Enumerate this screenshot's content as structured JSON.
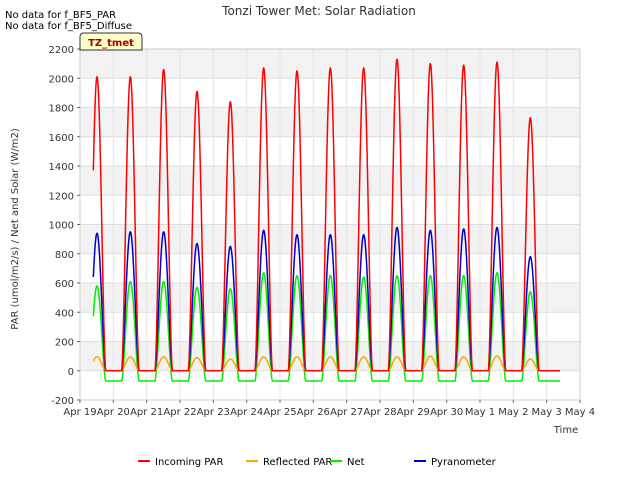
{
  "chart_data": {
    "type": "line",
    "title": "Tonzi Tower Met: Solar Radiation",
    "notes": [
      "No data for f_BF5_PAR",
      "No data for f_BF5_Diffuse"
    ],
    "site_badge": "TZ_tmet",
    "xlabel": "Time",
    "ylabel": "PAR (umol/m2/s) / Net and Solar (W/m2)",
    "xlim": [
      0,
      15
    ],
    "ylim": [
      -200,
      2200
    ],
    "x_tick_labels": [
      "Apr 19",
      "Apr 20",
      "Apr 21",
      "Apr 22",
      "Apr 23",
      "Apr 24",
      "Apr 25",
      "Apr 26",
      "Apr 27",
      "Apr 28",
      "Apr 29",
      "Apr 30",
      "May 1",
      "May 2",
      "May 3",
      "May 4"
    ],
    "y_ticks": [
      -200,
      0,
      200,
      400,
      600,
      800,
      1000,
      1200,
      1400,
      1600,
      1800,
      2000,
      2200
    ],
    "grid": true,
    "legend_position": "bottom",
    "data_start_day": 0.4,
    "data_end_day": 14.4,
    "series": [
      {
        "name": "Incoming PAR",
        "color": "#ff0000",
        "night_value": 0,
        "daily_peak": [
          2010,
          2010,
          2060,
          1910,
          1840,
          2070,
          2050,
          2070,
          2070,
          2130,
          2100,
          2090,
          2110,
          1730
        ]
      },
      {
        "name": "Reflected PAR",
        "color": "#ffa500",
        "night_value": 0,
        "daily_peak": [
          95,
          95,
          95,
          90,
          80,
          95,
          95,
          95,
          95,
          95,
          100,
          95,
          100,
          80
        ]
      },
      {
        "name": "Net",
        "color": "#00ee00",
        "night_value": -70,
        "daily_peak": [
          580,
          610,
          610,
          570,
          560,
          670,
          650,
          650,
          640,
          650,
          650,
          650,
          670,
          540
        ]
      },
      {
        "name": "Pyranometer",
        "color": "#0000cc",
        "night_value": 0,
        "daily_peak": [
          940,
          950,
          950,
          870,
          850,
          960,
          930,
          930,
          930,
          980,
          960,
          970,
          980,
          780
        ]
      }
    ]
  }
}
